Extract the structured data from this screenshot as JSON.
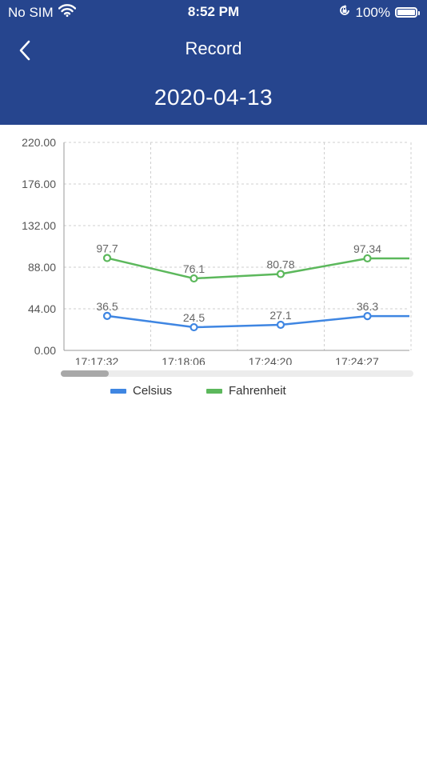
{
  "status_bar": {
    "carrier": "No SIM",
    "time": "8:52 PM",
    "battery": "100%"
  },
  "nav": {
    "title": "Record"
  },
  "date": "2020-04-13",
  "colors": {
    "header": "#26458e",
    "celsius": "#3f86e2",
    "fahrenheit": "#5cb85c"
  },
  "chart_data": {
    "type": "line",
    "x": [
      "17:17:32",
      "17:18:06",
      "17:24:20",
      "17:24:27"
    ],
    "yticks": [
      "0.00",
      "44.00",
      "88.00",
      "132.00",
      "176.00",
      "220.00"
    ],
    "ylim": [
      0,
      220
    ],
    "grid": true,
    "legend_position": "bottom",
    "series": [
      {
        "name": "Celsius",
        "values": [
          36.5,
          24.5,
          27.1,
          36.3
        ],
        "labels": [
          "36.5",
          "24.5",
          "27.1",
          "36.3"
        ]
      },
      {
        "name": "Fahrenheit",
        "values": [
          97.7,
          76.1,
          80.78,
          97.34
        ],
        "labels": [
          "97.7",
          "76.1",
          "80.78",
          "97.34"
        ]
      }
    ]
  }
}
